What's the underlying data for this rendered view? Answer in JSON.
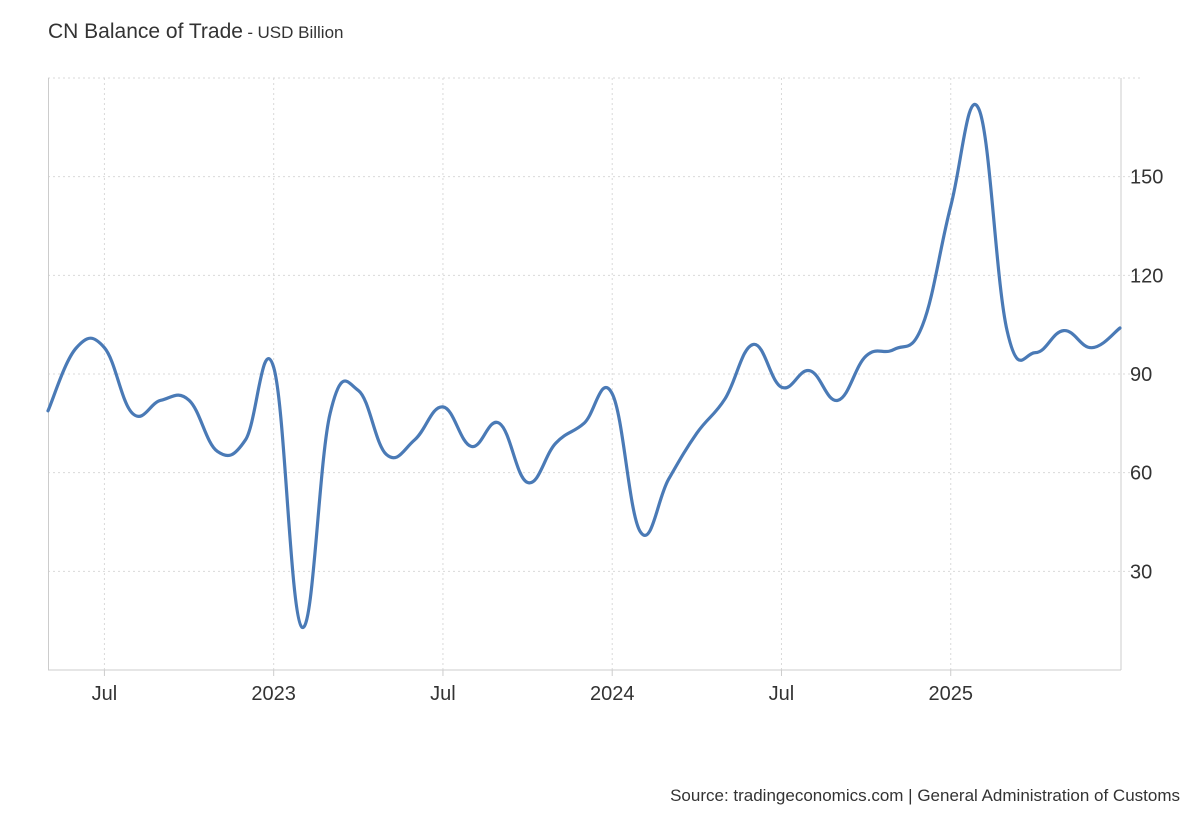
{
  "chart_data": {
    "type": "line",
    "title": "CN Balance of Trade",
    "subtitle": "USD Billion",
    "title_separator": "-",
    "x_tick_labels": [
      "Jul",
      "2023",
      "Jul",
      "2024",
      "Jul",
      "2025"
    ],
    "y_ticks": [
      30,
      60,
      90,
      120,
      150
    ],
    "ylim": [
      0,
      180
    ],
    "grid": true,
    "legend": "none",
    "line_color": "#4a7ab6",
    "series": [
      {
        "x": [
          "2022-05",
          "2022-06",
          "2022-07",
          "2022-08",
          "2022-09",
          "2022-10",
          "2022-11",
          "2022-12",
          "2023-01",
          "2023-02",
          "2023-03",
          "2023-04",
          "2023-05",
          "2023-06",
          "2023-07",
          "2023-08",
          "2023-09",
          "2023-10",
          "2023-11",
          "2023-12",
          "2024-01",
          "2024-02",
          "2024-03",
          "2024-04",
          "2024-05",
          "2024-06",
          "2024-07",
          "2024-08",
          "2024-09",
          "2024-10",
          "2024-11",
          "2024-12",
          "2025-01",
          "2025-02",
          "2025-03",
          "2025-04",
          "2025-05",
          "2025-06",
          "2025-07"
        ],
        "values": [
          78.8,
          97.9,
          98.0,
          78.0,
          82.0,
          82.0,
          66.5,
          70.0,
          92.0,
          13.0,
          78.0,
          85.0,
          65.5,
          70.0,
          80.0,
          68.0,
          75.0,
          57.0,
          69.0,
          75.0,
          84.0,
          42.0,
          58.0,
          72.0,
          82.5,
          99.0,
          86.0,
          91.0,
          82.0,
          95.5,
          97.5,
          104.8,
          141.0,
          170.5,
          103.0,
          96.5,
          103.2,
          98.0,
          104.0
        ]
      }
    ]
  },
  "source": "Source: tradingeconomics.com | General Administration of Customs"
}
